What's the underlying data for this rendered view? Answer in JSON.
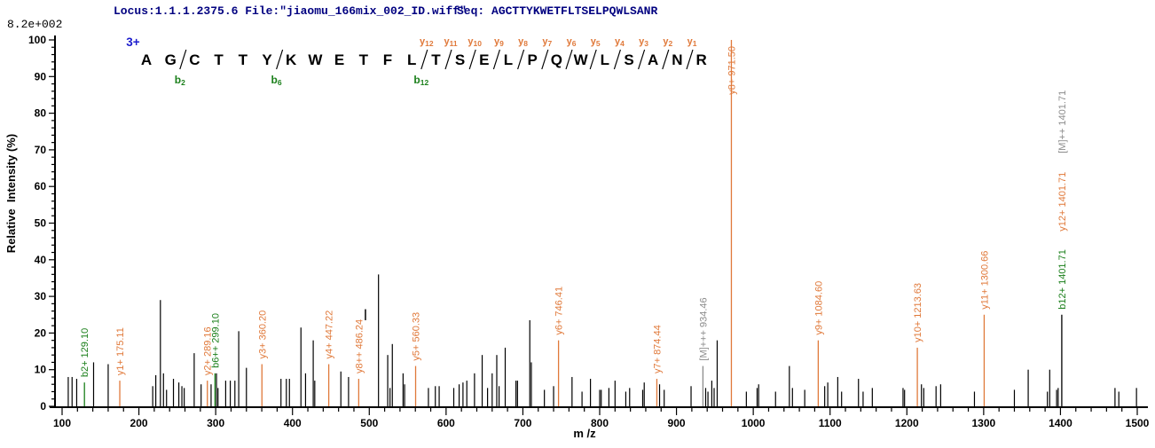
{
  "header": {
    "locus_file": "Locus:1.1.1.2375.6 File:\"jiaomu_166mix_002_ID.wiff\"",
    "seq_prefix": "Seq: ",
    "sequence": "AGCTTYKWETFLTSELPQWLSANR",
    "base_peak_intensity": "8.2e+002",
    "text_color": "#000080"
  },
  "sequence_panel": {
    "precursor_charge": "3+",
    "residues": [
      "A",
      "G",
      "C",
      "T",
      "T",
      "Y",
      "K",
      "W",
      "E",
      "T",
      "F",
      "L",
      "T",
      "S",
      "E",
      "L",
      "P",
      "Q",
      "W",
      "L",
      "S",
      "A",
      "N",
      "R"
    ],
    "b_ions": [
      {
        "label": "b",
        "sub": "2",
        "boundary": 2
      },
      {
        "label": "b",
        "sub": "6",
        "boundary": 6
      },
      {
        "label": "b",
        "sub": "12",
        "boundary": 12
      }
    ],
    "y_ions": [
      {
        "label": "y",
        "sub": "12",
        "boundary": 12
      },
      {
        "label": "y",
        "sub": "11",
        "boundary": 13
      },
      {
        "label": "y",
        "sub": "10",
        "boundary": 14
      },
      {
        "label": "y",
        "sub": "9",
        "boundary": 15
      },
      {
        "label": "y",
        "sub": "8",
        "boundary": 16
      },
      {
        "label": "y",
        "sub": "7",
        "boundary": 17
      },
      {
        "label": "y",
        "sub": "6",
        "boundary": 18
      },
      {
        "label": "y",
        "sub": "5",
        "boundary": 19
      },
      {
        "label": "y",
        "sub": "4",
        "boundary": 20
      },
      {
        "label": "y",
        "sub": "3",
        "boundary": 21
      },
      {
        "label": "y",
        "sub": "2",
        "boundary": 22
      },
      {
        "label": "y",
        "sub": "1",
        "boundary": 23
      }
    ],
    "colors": {
      "b_ion": "#1a7f1a",
      "y_ion": "#e0793a",
      "charge": "#1c1ccd",
      "residue": "#000000"
    }
  },
  "chart_data": {
    "type": "bar",
    "variant": "centroided MS/MS stick spectrum",
    "title": "",
    "xlabel": "m /z",
    "ylabel": "Relative  Intensity (%)",
    "xlim": [
      100,
      1500
    ],
    "ylim": [
      0,
      100
    ],
    "x_major_tick": 100,
    "x_minor_tick": 20,
    "y_major_tick": 10,
    "y_minor_tick": 2,
    "grid": false,
    "legend": "none",
    "colors": {
      "peak": "#000000",
      "y_ion": "#e0793a",
      "b_ion": "#1a7f1a",
      "precursor": "#8c8c8c"
    },
    "labeled_peaks": [
      {
        "label": "b2+ 129.10",
        "mz": 129.1,
        "pct": 6.5,
        "type": "b"
      },
      {
        "label": "y1+ 175.11",
        "mz": 175.11,
        "pct": 7,
        "type": "y"
      },
      {
        "label": "y2+ 289.16",
        "mz": 289.16,
        "pct": 7,
        "type": "y"
      },
      {
        "label": "b6++ 299.10",
        "mz": 299.1,
        "pct": 9,
        "type": "b"
      },
      {
        "label": "y3+ 360.20",
        "mz": 360.2,
        "pct": 11.5,
        "type": "y"
      },
      {
        "label": "y4+ 447.22",
        "mz": 447.22,
        "pct": 11.5,
        "type": "y"
      },
      {
        "label": "y8++ 486.24",
        "mz": 486.24,
        "pct": 7.5,
        "type": "y"
      },
      {
        "label": "y5+ 560.33",
        "mz": 560.33,
        "pct": 11,
        "type": "y"
      },
      {
        "label": "y6+ 746.41",
        "mz": 746.41,
        "pct": 18,
        "type": "y"
      },
      {
        "label": "y7+ 874.44",
        "mz": 874.44,
        "pct": 7.5,
        "type": "y"
      },
      {
        "label": "[M]+++ 934.46",
        "mz": 934.46,
        "pct": 11,
        "type": "M"
      },
      {
        "label": "y8+ 971.50",
        "mz": 971.5,
        "pct": 100,
        "type": "y"
      },
      {
        "label": "y9+ 1084.60",
        "mz": 1084.6,
        "pct": 18,
        "type": "y"
      },
      {
        "label": "y10+ 1213.63",
        "mz": 1213.63,
        "pct": 16,
        "type": "y"
      },
      {
        "label": "y11+ 1300.66",
        "mz": 1300.66,
        "pct": 25,
        "type": "y"
      },
      {
        "label": "b12+ 1401.71",
        "mz": 1401.71,
        "pct": 25,
        "type": "b",
        "peak_color": "#000000"
      },
      {
        "label": "y12+ 1401.71",
        "mz": 1401.71,
        "pct": 25,
        "type": "y",
        "label_only": true,
        "stack": 1
      },
      {
        "label": "[M]++ 1401.71",
        "mz": 1401.71,
        "pct": 25,
        "type": "M",
        "label_only": true,
        "stack": 2
      }
    ],
    "peaks": [
      [
        108,
        8
      ],
      [
        113,
        8
      ],
      [
        119,
        7.5
      ],
      [
        141,
        12
      ],
      [
        160,
        11.5
      ],
      [
        218,
        5.5
      ],
      [
        222,
        8.5
      ],
      [
        228,
        29
      ],
      [
        232,
        9
      ],
      [
        236,
        4.5
      ],
      [
        245,
        7.5
      ],
      [
        252,
        6.5
      ],
      [
        256,
        5.5
      ],
      [
        259,
        5
      ],
      [
        272,
        14.5
      ],
      [
        281,
        6
      ],
      [
        294,
        6
      ],
      [
        301,
        9
      ],
      [
        303,
        5
      ],
      [
        313,
        7
      ],
      [
        319,
        7
      ],
      [
        325,
        7
      ],
      [
        330,
        20.5
      ],
      [
        340,
        10.5
      ],
      [
        385,
        7.5
      ],
      [
        392,
        7.5
      ],
      [
        396,
        7.5
      ],
      [
        411,
        21.5
      ],
      [
        417,
        9
      ],
      [
        427,
        18
      ],
      [
        429,
        7
      ],
      [
        463,
        9.5
      ],
      [
        473,
        8
      ],
      [
        512,
        36
      ],
      [
        524,
        14
      ],
      [
        527,
        5
      ],
      [
        530,
        17
      ],
      [
        544,
        9
      ],
      [
        546,
        6
      ],
      [
        577,
        5
      ],
      [
        586,
        5.5
      ],
      [
        591,
        5.5
      ],
      [
        610,
        5
      ],
      [
        617,
        6
      ],
      [
        622,
        6.5
      ],
      [
        627,
        7
      ],
      [
        637,
        9
      ],
      [
        647,
        14
      ],
      [
        654,
        5
      ],
      [
        660,
        9
      ],
      [
        666,
        14
      ],
      [
        669,
        5.5
      ],
      [
        677,
        16
      ],
      [
        691,
        7
      ],
      [
        693,
        7
      ],
      [
        709,
        23.5
      ],
      [
        711,
        12
      ],
      [
        728,
        4.5
      ],
      [
        740,
        5.5
      ],
      [
        764,
        8
      ],
      [
        777,
        4
      ],
      [
        788,
        7.5
      ],
      [
        800,
        4.5
      ],
      [
        802,
        4.5
      ],
      [
        812,
        5
      ],
      [
        820,
        7
      ],
      [
        834,
        4
      ],
      [
        839,
        5
      ],
      [
        856,
        4.5
      ],
      [
        858,
        6.5
      ],
      [
        878,
        6
      ],
      [
        884,
        4.5
      ],
      [
        919,
        5.5
      ],
      [
        938,
        5
      ],
      [
        941,
        4
      ],
      [
        946,
        7
      ],
      [
        949,
        5
      ],
      [
        953,
        18
      ],
      [
        991,
        4
      ],
      [
        1005,
        5
      ],
      [
        1007,
        6
      ],
      [
        1029,
        4
      ],
      [
        1047,
        11
      ],
      [
        1051,
        5
      ],
      [
        1067,
        4.5
      ],
      [
        1093,
        5.5
      ],
      [
        1097,
        6.5
      ],
      [
        1110,
        8
      ],
      [
        1115,
        4
      ],
      [
        1137,
        7.5
      ],
      [
        1143,
        4
      ],
      [
        1155,
        5
      ],
      [
        1195,
        5
      ],
      [
        1197,
        4.5
      ],
      [
        1219,
        6
      ],
      [
        1222,
        5
      ],
      [
        1238,
        5.5
      ],
      [
        1244,
        6
      ],
      [
        1288,
        4
      ],
      [
        1340,
        4.5
      ],
      [
        1358,
        10
      ],
      [
        1383,
        4
      ],
      [
        1386,
        10
      ],
      [
        1395,
        4.5
      ],
      [
        1397,
        5
      ],
      [
        1471,
        5
      ],
      [
        1476,
        4
      ],
      [
        1499,
        5
      ]
    ],
    "floating_marks": [
      {
        "mz": 495,
        "pct_bottom": 23.5,
        "pct_top": 26.5
      }
    ]
  }
}
